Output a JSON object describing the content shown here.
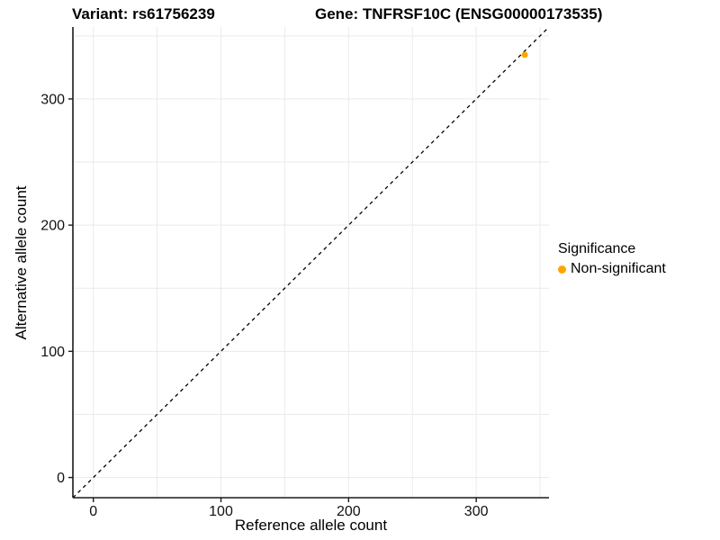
{
  "title": {
    "variant_label": "Variant: rs61756239",
    "gene_label": "Gene: TNFRSF10C (ENSG00000173535)"
  },
  "axes": {
    "x": {
      "label": "Reference allele count"
    },
    "y": {
      "label": "Alternative allele count"
    }
  },
  "legend": {
    "title": "Significance",
    "items": [
      {
        "label": "Non-significant",
        "color": "#FFA500"
      }
    ]
  },
  "colors": {
    "point": "#FFA500",
    "grid": "#EAEAEA",
    "axis_line": "#1A1A1A",
    "tick_text": "#111111",
    "identity_line": "#000000",
    "background": "#FFFFFF"
  },
  "chart_data": {
    "type": "scatter",
    "title": "Variant: rs61756239 | Gene: TNFRSF10C (ENSG00000173535)",
    "xlabel": "Reference allele count",
    "ylabel": "Alternative allele count",
    "xlim": [
      -16,
      357
    ],
    "ylim": [
      -16,
      357
    ],
    "x_major_ticks": [
      0,
      100,
      200,
      300
    ],
    "y_major_ticks": [
      0,
      100,
      200,
      300
    ],
    "x_minor_ticks": [
      50,
      150,
      250,
      350
    ],
    "y_minor_ticks": [
      50,
      150,
      250,
      350
    ],
    "grid": "major+minor",
    "legend_position": "right",
    "identity_line": {
      "style": "dashed",
      "from": -16,
      "to": 357,
      "note": "y = x reference line"
    },
    "series": [
      {
        "name": "Non-significant",
        "color": "#FFA500",
        "points": [
          {
            "x": 338,
            "y": 335
          }
        ]
      }
    ]
  }
}
